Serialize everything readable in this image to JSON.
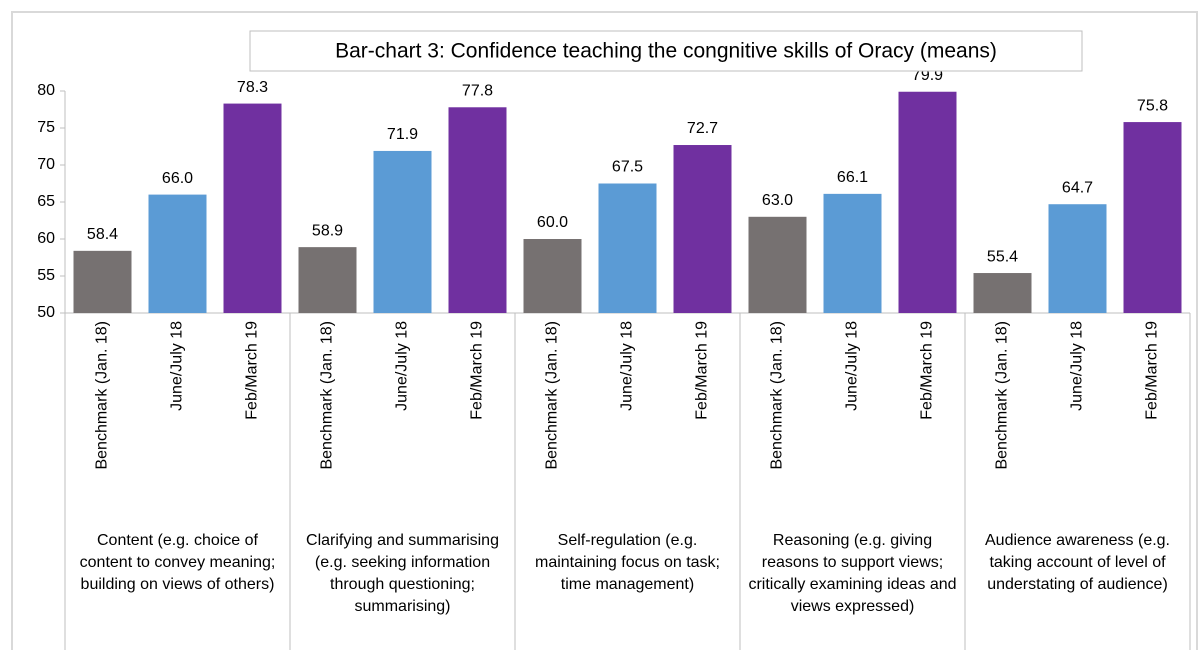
{
  "chart_data": {
    "type": "bar",
    "title": "Bar-chart 3: Confidence teaching the congnitive skills of Oracy (means)",
    "categories": [
      "Content (e.g. choice of content to convey meaning; building on views of others)",
      "Clarifying and summarising (e.g. seeking information through questioning; summarising)",
      "Self-regulation (e.g. maintaining focus on task; time management)",
      "Reasoning (e.g. giving reasons to support views; critically examining ideas and views expressed)",
      "Audience awareness (e.g. taking account of level of understating of audience)"
    ],
    "series": [
      {
        "name": "Benchmark (Jan. 18)",
        "color": "#767171",
        "values": [
          58.4,
          58.9,
          60.0,
          63.0,
          55.4
        ],
        "value_labels": [
          "58.4",
          "58.9",
          "60.0",
          "63.0",
          "55.4"
        ]
      },
      {
        "name": "June/July 18",
        "color": "#5b9bd5",
        "values": [
          66.0,
          71.9,
          67.5,
          66.1,
          64.7
        ],
        "value_labels": [
          "66.0",
          "71.9",
          "67.5",
          "66.1",
          "64.7"
        ]
      },
      {
        "name": "Feb/March 19",
        "color": "#7030a0",
        "values": [
          78.3,
          77.8,
          72.7,
          79.9,
          75.8
        ],
        "value_labels": [
          "78.3",
          "77.8",
          "72.7",
          "79.9",
          "75.8"
        ]
      }
    ],
    "ylim": [
      50,
      80
    ],
    "yticks": [
      50,
      55,
      60,
      65,
      70,
      75,
      80
    ],
    "grid": false
  }
}
